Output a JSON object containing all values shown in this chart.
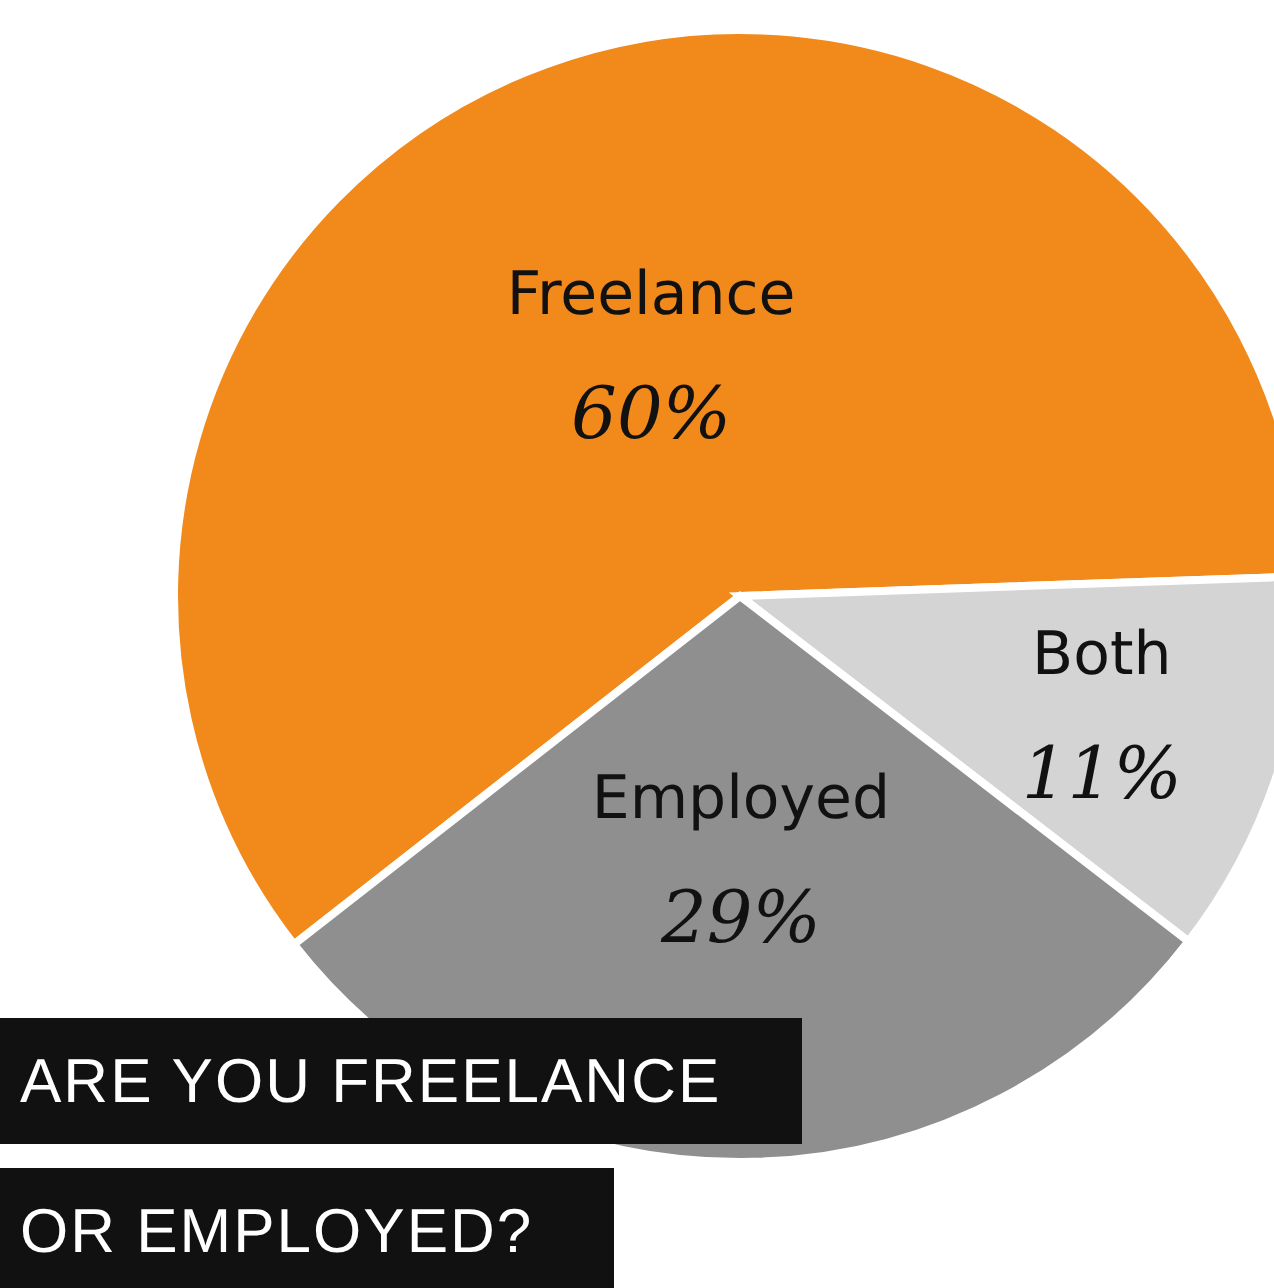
{
  "chart_data": {
    "type": "pie",
    "title": "ARE YOU FREELANCE OR EMPLOYED?",
    "categories": [
      "Freelance",
      "Both",
      "Employed"
    ],
    "values": [
      60,
      11,
      29
    ],
    "colors": [
      "#f18a1b",
      "#d4d4d4",
      "#8f8f8f"
    ],
    "value_labels": [
      "60%",
      "11%",
      "29%"
    ]
  }
}
